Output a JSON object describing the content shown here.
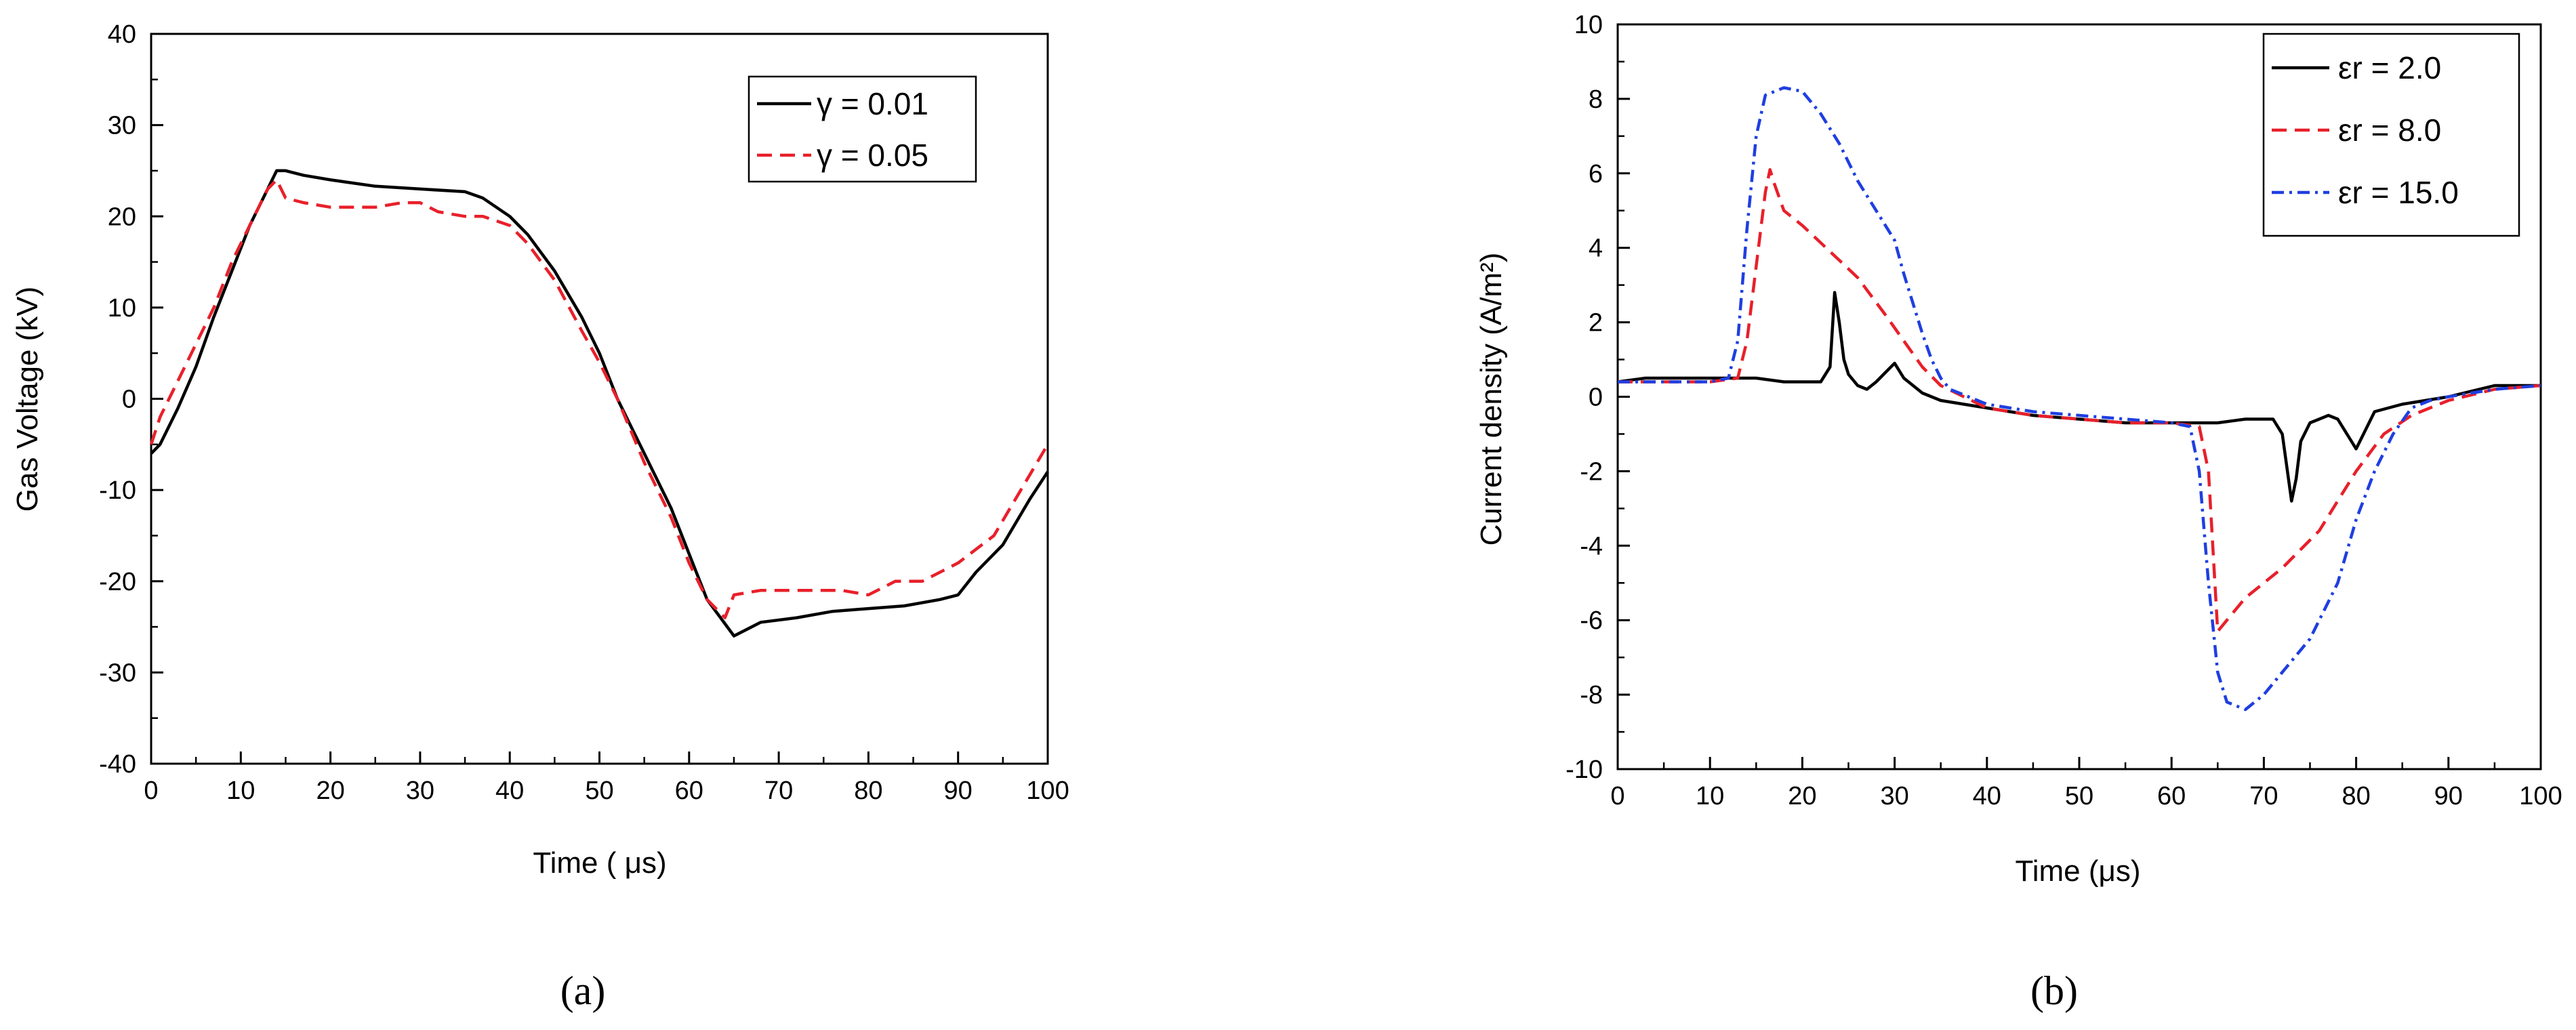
{
  "chart_data": [
    {
      "type": "line",
      "panel_label": "(a)",
      "xlabel": "Time ( μs)",
      "ylabel": "Gas Voltage (kV)",
      "xlim": [
        0,
        100
      ],
      "ylim": [
        -40,
        40
      ],
      "xticks": [
        0,
        10,
        20,
        30,
        40,
        50,
        60,
        70,
        80,
        90,
        100
      ],
      "yticks": [
        -40,
        -30,
        -20,
        -10,
        0,
        10,
        20,
        30,
        40
      ],
      "legend_position": "top-right",
      "series": [
        {
          "name": "γ = 0.01",
          "color": "#000000",
          "dash": "solid",
          "x": [
            0,
            1,
            3,
            5,
            7,
            9,
            11,
            13,
            14,
            15,
            17,
            20,
            25,
            30,
            35,
            37,
            40,
            42,
            45,
            48,
            50,
            52,
            55,
            58,
            60,
            62,
            65,
            68,
            72,
            76,
            80,
            84,
            88,
            90,
            92,
            95,
            98,
            100
          ],
          "y": [
            -6,
            -5,
            -1,
            3.5,
            9,
            14,
            19,
            23,
            25,
            25,
            24.5,
            24,
            23.3,
            23,
            22.7,
            22,
            20,
            18,
            14,
            9,
            5,
            0,
            -6,
            -12,
            -17,
            -22,
            -26,
            -24.5,
            -24,
            -23.3,
            -23,
            -22.7,
            -22,
            -21.5,
            -19,
            -16,
            -11,
            -8
          ]
        },
        {
          "name": "γ = 0.05",
          "color": "#e8202a",
          "dash": "dashed",
          "x": [
            0,
            1,
            3,
            5,
            7,
            9,
            11,
            13,
            14,
            15,
            17,
            20,
            25,
            28,
            30,
            32,
            35,
            37,
            40,
            42,
            45,
            48,
            50,
            52,
            55,
            58,
            60,
            62,
            64,
            65,
            68,
            72,
            75,
            77,
            80,
            83,
            86,
            90,
            94,
            97,
            100
          ],
          "y": [
            -5,
            -2,
            2,
            6,
            10,
            15,
            19,
            23,
            24,
            22,
            21.5,
            21,
            21,
            21.5,
            21.5,
            20.5,
            20,
            20,
            19,
            17,
            13,
            7.5,
            4,
            0,
            -7,
            -13,
            -18,
            -22,
            -24,
            -21.5,
            -21,
            -21,
            -21,
            -21,
            -21.5,
            -20,
            -20,
            -18,
            -15,
            -10,
            -5
          ]
        }
      ]
    },
    {
      "type": "line",
      "panel_label": "(b)",
      "xlabel": "Time (μs)",
      "ylabel": "Current density (A/m²)",
      "xlim": [
        0,
        100
      ],
      "ylim": [
        -10,
        10
      ],
      "xticks": [
        0,
        10,
        20,
        30,
        40,
        50,
        60,
        70,
        80,
        90,
        100
      ],
      "yticks": [
        -10,
        -8,
        -6,
        -4,
        -2,
        0,
        2,
        4,
        6,
        8,
        10
      ],
      "legend_position": "top-right",
      "series": [
        {
          "name": "εr = 2.0",
          "color": "#000000",
          "dash": "solid",
          "x": [
            0,
            3,
            6,
            9,
            12,
            15,
            18,
            20,
            22,
            23,
            23.5,
            24,
            24.5,
            25,
            26,
            27,
            28,
            30,
            31,
            33,
            35,
            40,
            45,
            50,
            55,
            60,
            65,
            68,
            71,
            72,
            73,
            73.5,
            74,
            75,
            77,
            78,
            79,
            80,
            82,
            85,
            90,
            95,
            100
          ],
          "y": [
            0.4,
            0.5,
            0.5,
            0.5,
            0.5,
            0.5,
            0.4,
            0.4,
            0.4,
            0.8,
            2.8,
            2.0,
            1.0,
            0.6,
            0.3,
            0.2,
            0.4,
            0.9,
            0.5,
            0.1,
            -0.1,
            -0.3,
            -0.5,
            -0.6,
            -0.7,
            -0.7,
            -0.7,
            -0.6,
            -0.6,
            -1.0,
            -2.8,
            -2.2,
            -1.2,
            -0.7,
            -0.5,
            -0.6,
            -1.0,
            -1.4,
            -0.4,
            -0.2,
            0.0,
            0.3,
            0.3
          ]
        },
        {
          "name": "εr = 8.0",
          "color": "#e8202a",
          "dash": "dashed",
          "x": [
            0,
            5,
            10,
            13,
            14,
            15,
            16,
            16.5,
            17,
            18,
            20,
            23,
            26,
            29,
            31,
            33,
            35,
            40,
            45,
            50,
            55,
            60,
            63,
            64,
            65,
            66,
            68,
            72,
            76,
            80,
            83,
            86,
            90,
            95,
            100
          ],
          "y": [
            0.4,
            0.4,
            0.4,
            0.5,
            1.5,
            3.5,
            5.5,
            6.1,
            5.7,
            5.0,
            4.6,
            3.9,
            3.2,
            2.2,
            1.5,
            0.8,
            0.3,
            -0.3,
            -0.5,
            -0.6,
            -0.7,
            -0.7,
            -0.8,
            -2.0,
            -6.3,
            -6.0,
            -5.4,
            -4.6,
            -3.6,
            -2.0,
            -1.0,
            -0.5,
            -0.1,
            0.2,
            0.3
          ]
        },
        {
          "name": "εr = 15.0",
          "color": "#1f3fe0",
          "dash": "dashdot",
          "x": [
            0,
            5,
            10,
            12,
            13,
            14,
            15,
            16,
            18,
            20,
            22,
            24,
            26,
            28,
            30,
            31,
            32,
            33,
            34,
            35,
            36,
            40,
            45,
            50,
            55,
            60,
            62,
            63,
            64,
            65,
            66,
            68,
            70,
            72,
            75,
            78,
            80,
            82,
            84,
            86,
            88,
            90,
            95,
            100
          ],
          "y": [
            0.4,
            0.4,
            0.4,
            0.5,
            1.5,
            4.5,
            7.0,
            8.1,
            8.3,
            8.2,
            7.6,
            6.8,
            5.8,
            5.0,
            4.2,
            3.3,
            2.5,
            1.7,
            1.0,
            0.5,
            0.2,
            -0.2,
            -0.4,
            -0.5,
            -0.6,
            -0.7,
            -0.8,
            -2.0,
            -5.0,
            -7.4,
            -8.2,
            -8.4,
            -8.0,
            -7.4,
            -6.5,
            -5.0,
            -3.3,
            -2.0,
            -1.0,
            -0.3,
            -0.1,
            0.0,
            0.2,
            0.3
          ]
        }
      ]
    }
  ]
}
